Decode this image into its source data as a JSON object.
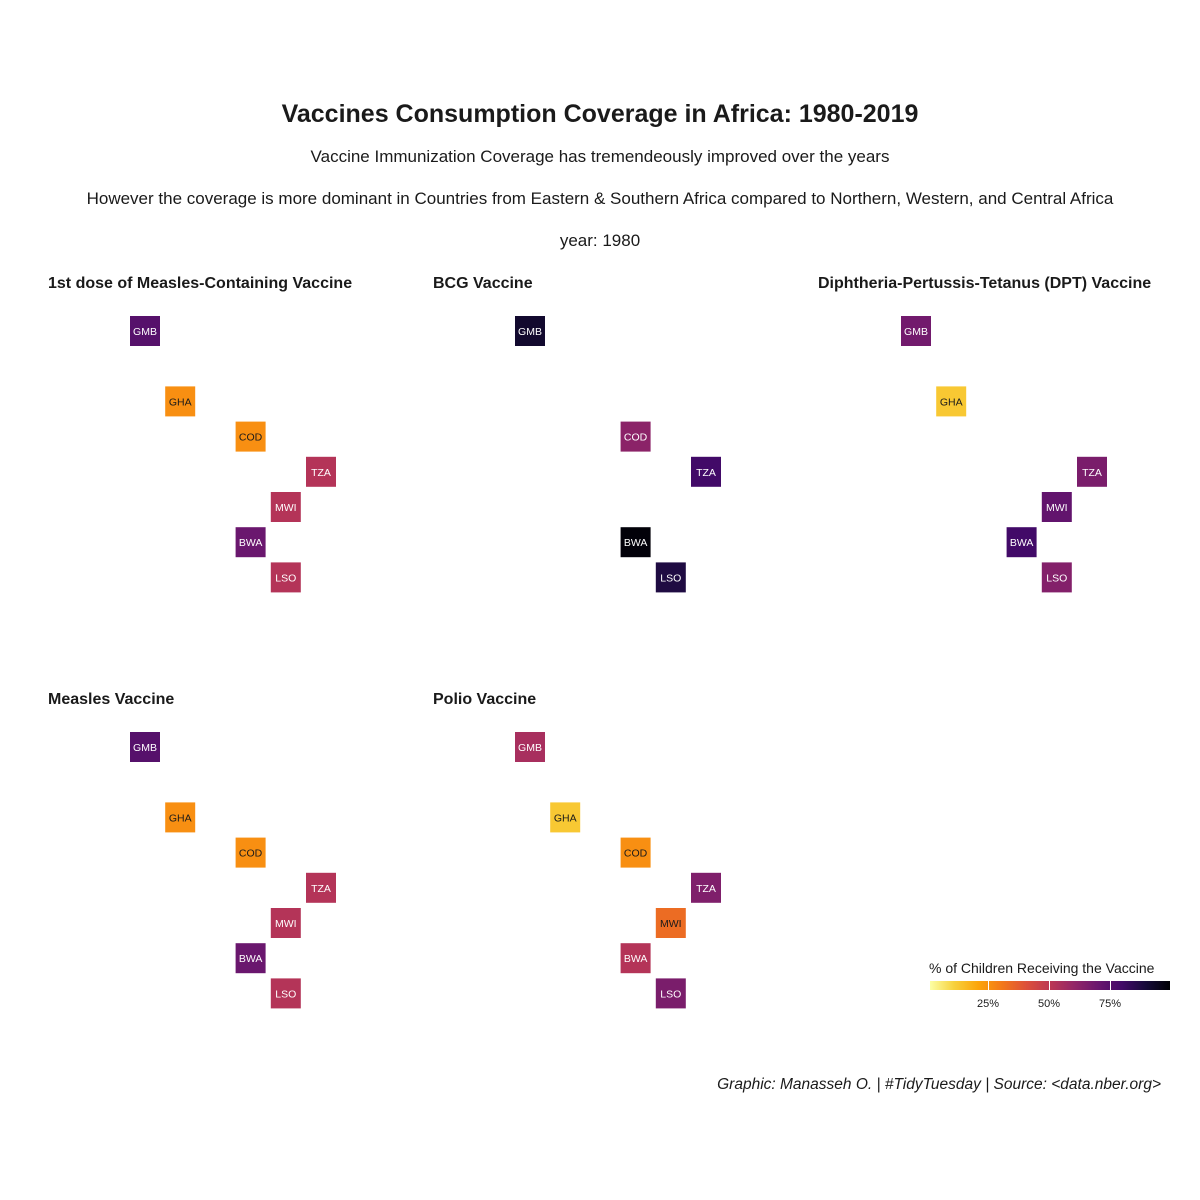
{
  "title": "Vaccines Consumption Coverage in Africa: 1980-2019",
  "subtitle_1": "Vaccine Immunization Coverage has tremendeously improved over the years",
  "subtitle_2": "However the coverage is more dominant in Countries from Eastern & Southern Africa compared to Northern, Western, and Central Africa",
  "subtitle_3": "year: 1980",
  "caption": "Graphic: Manasseh O. | #TidyTuesday | Source: <data.nber.org>",
  "legend": {
    "title": "% of Children Receiving the Vaccine",
    "ticks": [
      "25%",
      "50%",
      "75%"
    ],
    "tick_values": [
      25,
      50,
      75
    ],
    "range": [
      0,
      100
    ],
    "palette": "inferno (reversed)"
  },
  "chart_data": {
    "type": "heatmap",
    "year": 1980,
    "value_unit": "% of children receiving the vaccine",
    "grid_positions": {
      "GMB": {
        "col": 1,
        "row": 1
      },
      "GHA": {
        "col": 2,
        "row": 3
      },
      "COD": {
        "col": 4,
        "row": 4
      },
      "TZA": {
        "col": 6,
        "row": 5
      },
      "MWI": {
        "col": 5,
        "row": 6
      },
      "BWA": {
        "col": 4,
        "row": 7
      },
      "LSO": {
        "col": 5,
        "row": 8
      }
    },
    "panels": [
      {
        "title": "1st dose of Measles-Containing Vaccine",
        "tiles": [
          {
            "country": "GMB",
            "value": 75
          },
          {
            "country": "GHA",
            "value": 25
          },
          {
            "country": "COD",
            "value": 25
          },
          {
            "country": "TZA",
            "value": 52
          },
          {
            "country": "MWI",
            "value": 52
          },
          {
            "country": "BWA",
            "value": 70
          },
          {
            "country": "LSO",
            "value": 52
          }
        ]
      },
      {
        "title": "BCG Vaccine",
        "tiles": [
          {
            "country": "GMB",
            "value": 92
          },
          {
            "country": "COD",
            "value": 62
          },
          {
            "country": "TZA",
            "value": 80
          },
          {
            "country": "BWA",
            "value": 99
          },
          {
            "country": "LSO",
            "value": 88
          }
        ]
      },
      {
        "title": "Diphtheria-Pertussis-Tetanus (DPT) Vaccine",
        "tiles": [
          {
            "country": "GMB",
            "value": 68
          },
          {
            "country": "GHA",
            "value": 12
          },
          {
            "country": "TZA",
            "value": 66
          },
          {
            "country": "MWI",
            "value": 72
          },
          {
            "country": "BWA",
            "value": 80
          },
          {
            "country": "LSO",
            "value": 64
          }
        ]
      },
      {
        "title": "Measles Vaccine",
        "tiles": [
          {
            "country": "GMB",
            "value": 75
          },
          {
            "country": "GHA",
            "value": 25
          },
          {
            "country": "COD",
            "value": 25
          },
          {
            "country": "TZA",
            "value": 52
          },
          {
            "country": "MWI",
            "value": 52
          },
          {
            "country": "BWA",
            "value": 70
          },
          {
            "country": "LSO",
            "value": 52
          }
        ]
      },
      {
        "title": "Polio Vaccine",
        "tiles": [
          {
            "country": "GMB",
            "value": 55
          },
          {
            "country": "GHA",
            "value": 12
          },
          {
            "country": "COD",
            "value": 25
          },
          {
            "country": "TZA",
            "value": 65
          },
          {
            "country": "MWI",
            "value": 33
          },
          {
            "country": "BWA",
            "value": 52
          },
          {
            "country": "LSO",
            "value": 66
          }
        ]
      }
    ]
  }
}
